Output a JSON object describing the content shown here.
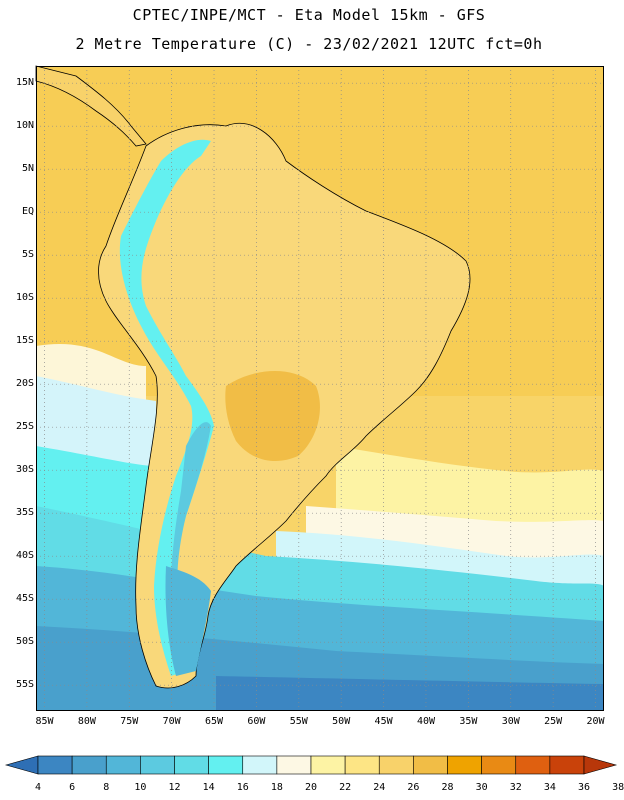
{
  "header": {
    "line1": "CPTEC/INPE/MCT -  Eta Model 15km - GFS",
    "line2": "2 Metre Temperature (C) - 23/02/2021 12UTC fct=0h"
  },
  "map": {
    "lon_range": [
      -86,
      -19
    ],
    "lat_range": [
      17,
      -58
    ],
    "lat_ticks": [
      {
        "value": 15,
        "label": "15N"
      },
      {
        "value": 10,
        "label": "10N"
      },
      {
        "value": 5,
        "label": "5N"
      },
      {
        "value": 0,
        "label": "EQ"
      },
      {
        "value": -5,
        "label": "5S"
      },
      {
        "value": -10,
        "label": "10S"
      },
      {
        "value": -15,
        "label": "15S"
      },
      {
        "value": -20,
        "label": "20S"
      },
      {
        "value": -25,
        "label": "25S"
      },
      {
        "value": -30,
        "label": "30S"
      },
      {
        "value": -35,
        "label": "35S"
      },
      {
        "value": -40,
        "label": "40S"
      },
      {
        "value": -45,
        "label": "45S"
      },
      {
        "value": -50,
        "label": "50S"
      },
      {
        "value": -55,
        "label": "55S"
      }
    ],
    "lon_ticks": [
      {
        "value": -85,
        "label": "85W"
      },
      {
        "value": -80,
        "label": "80W"
      },
      {
        "value": -75,
        "label": "75W"
      },
      {
        "value": -70,
        "label": "70W"
      },
      {
        "value": -65,
        "label": "65W"
      },
      {
        "value": -60,
        "label": "60W"
      },
      {
        "value": -55,
        "label": "55W"
      },
      {
        "value": -50,
        "label": "50W"
      },
      {
        "value": -45,
        "label": "45W"
      },
      {
        "value": -40,
        "label": "40W"
      },
      {
        "value": -35,
        "label": "35W"
      },
      {
        "value": -30,
        "label": "30W"
      },
      {
        "value": -25,
        "label": "25W"
      },
      {
        "value": -20,
        "label": "20W"
      }
    ],
    "gridlines": "dotted"
  },
  "colorbar": {
    "labels": [
      "4",
      "6",
      "8",
      "10",
      "12",
      "14",
      "16",
      "18",
      "20",
      "22",
      "24",
      "26",
      "28",
      "30",
      "32",
      "34",
      "36",
      "38"
    ],
    "colors": [
      "#2e6fb5",
      "#3c86c2",
      "#49a0cc",
      "#52b6d8",
      "#5ccae0",
      "#61dce6",
      "#63f0f0",
      "#d2f6fa",
      "#fdf8e4",
      "#fdf3a4",
      "#fde585",
      "#f8d26a",
      "#f1bd46",
      "#efa300",
      "#e98a14",
      "#df6010",
      "#c9420a",
      "#b8370a"
    ]
  }
}
